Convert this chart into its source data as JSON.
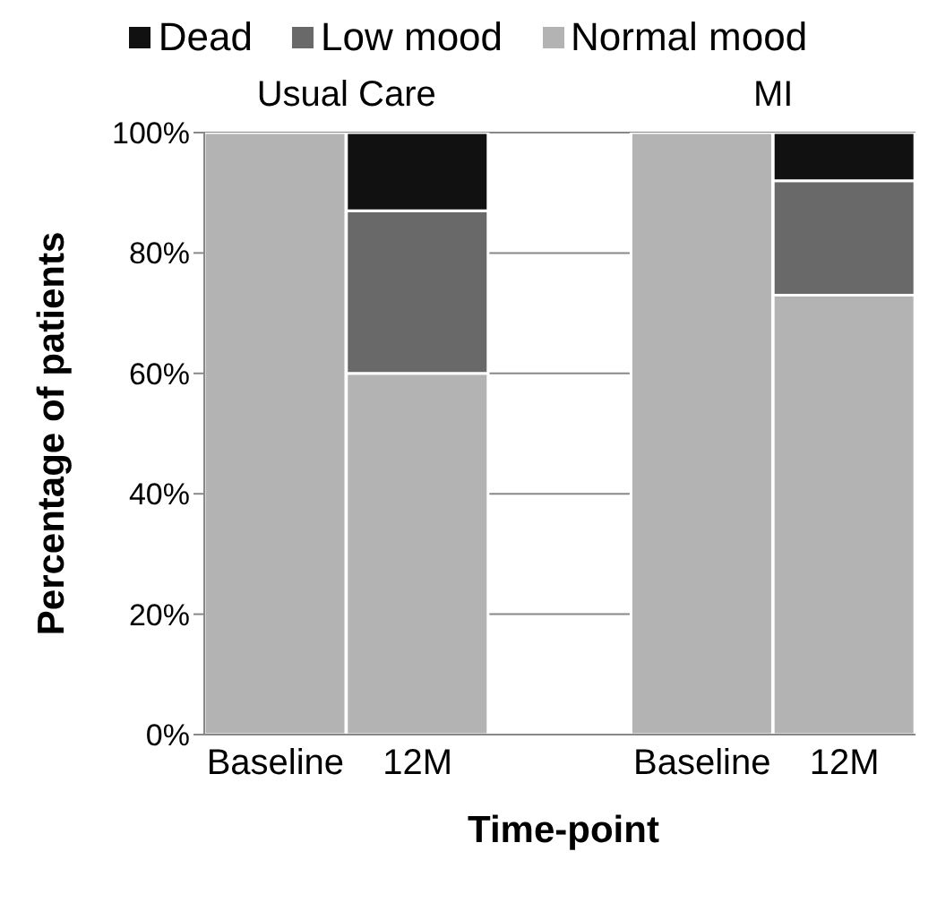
{
  "chart_data": {
    "type": "bar",
    "stacked": true,
    "xlabel": "Time-point",
    "ylabel": "Percentage of patients",
    "categories": [
      "Baseline",
      "12M",
      null,
      "Baseline",
      "12M"
    ],
    "series": [
      {
        "name": "Normal mood",
        "color": "#b3b3b3",
        "values": [
          100,
          60,
          null,
          100,
          73
        ]
      },
      {
        "name": "Low mood",
        "color": "#696969",
        "values": [
          0,
          27,
          null,
          0,
          19
        ]
      },
      {
        "name": "Dead",
        "color": "#111111",
        "values": [
          0,
          13,
          null,
          0,
          8
        ]
      }
    ],
    "annotations": [
      "Usual Care",
      "MI"
    ],
    "ylim": [
      0,
      100
    ],
    "yticks": [
      {
        "value": 0,
        "label": "0%"
      },
      {
        "value": 20,
        "label": "20%"
      },
      {
        "value": 40,
        "label": "40%"
      },
      {
        "value": 60,
        "label": "60%"
      },
      {
        "value": 80,
        "label": "80%"
      },
      {
        "value": 100,
        "label": "100%"
      }
    ],
    "grid": "y",
    "legend": "top"
  }
}
